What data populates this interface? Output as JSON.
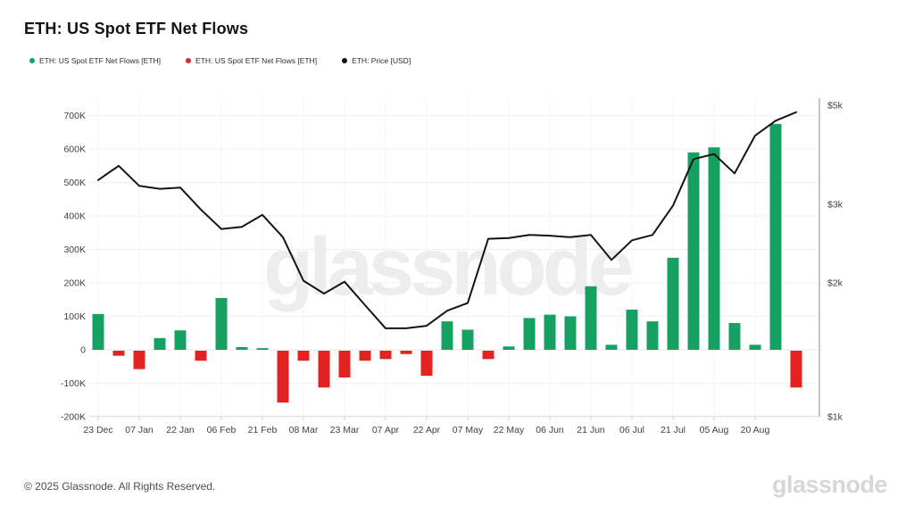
{
  "header": {
    "title": "ETH: US Spot ETF Net Flows"
  },
  "legend": [
    {
      "label": "ETH: US Spot ETF Net Flows [ETH]",
      "color": "#16a163",
      "marker": "dot"
    },
    {
      "label": "ETH: US Spot ETF Net Flows [ETH]",
      "color": "#e32322",
      "marker": "dot"
    },
    {
      "label": "ETH: Price [USD]",
      "color": "#111111",
      "marker": "dot"
    }
  ],
  "watermark": "glassnode",
  "footer": {
    "copyright": "© 2025 Glassnode. All Rights Reserved.",
    "brand": "glassnode"
  },
  "chart_data": {
    "type": "bar",
    "subtype": "bar+line combo, weekly bars",
    "title": "ETH: US Spot ETF Net Flows",
    "x_tick_labels": [
      "23 Dec",
      "07 Jan",
      "22 Jan",
      "06 Feb",
      "21 Feb",
      "08 Mar",
      "23 Mar",
      "07 Apr",
      "22 Apr",
      "07 May",
      "22 May",
      "06 Jun",
      "21 Jun",
      "06 Jul",
      "21 Jul",
      "05 Aug",
      "20 Aug"
    ],
    "x_label_every_n_bars": 2,
    "series": [
      {
        "name": "ETH: US Spot ETF Net Flows [ETH]",
        "type": "bar",
        "unit": "ETH (thousands)",
        "positive_color": "#16a163",
        "negative_color": "#e32322",
        "values_k": [
          107,
          -15,
          -55,
          35,
          58,
          -30,
          155,
          8,
          5,
          -155,
          -30,
          -110,
          -80,
          -30,
          -25,
          -10,
          -75,
          85,
          60,
          -25,
          10,
          95,
          105,
          100,
          190,
          15,
          120,
          85,
          275,
          590,
          605,
          80,
          15,
          675,
          -110
        ]
      },
      {
        "name": "ETH: Price [USD]",
        "type": "line",
        "unit": "USD",
        "color": "#141414",
        "values_usd": [
          3400,
          3660,
          3300,
          3250,
          3270,
          2920,
          2640,
          2670,
          2840,
          2530,
          2020,
          1890,
          2010,
          1780,
          1580,
          1580,
          1600,
          1730,
          1800,
          2510,
          2520,
          2560,
          2550,
          2530,
          2560,
          2250,
          2490,
          2560,
          2980,
          3790,
          3890,
          3520,
          4280,
          4620,
          4830
        ]
      }
    ],
    "left_axis": {
      "ticks": [
        "700K",
        "600K",
        "500K",
        "400K",
        "300K",
        "200K",
        "100K",
        "0",
        "-100K",
        "-200K"
      ],
      "tick_values_k": [
        700,
        600,
        500,
        400,
        300,
        200,
        100,
        0,
        -100,
        -200
      ],
      "range_k": [
        -200,
        700
      ],
      "scale": "linear",
      "grid": true
    },
    "right_axis": {
      "ticks": [
        "$5k",
        "$3k",
        "$2k",
        "$1k"
      ],
      "tick_values_usd": [
        5000,
        3000,
        2000,
        1000
      ],
      "range_usd": [
        1000,
        5000
      ],
      "scale": "log"
    },
    "legend_position": "top-left"
  }
}
